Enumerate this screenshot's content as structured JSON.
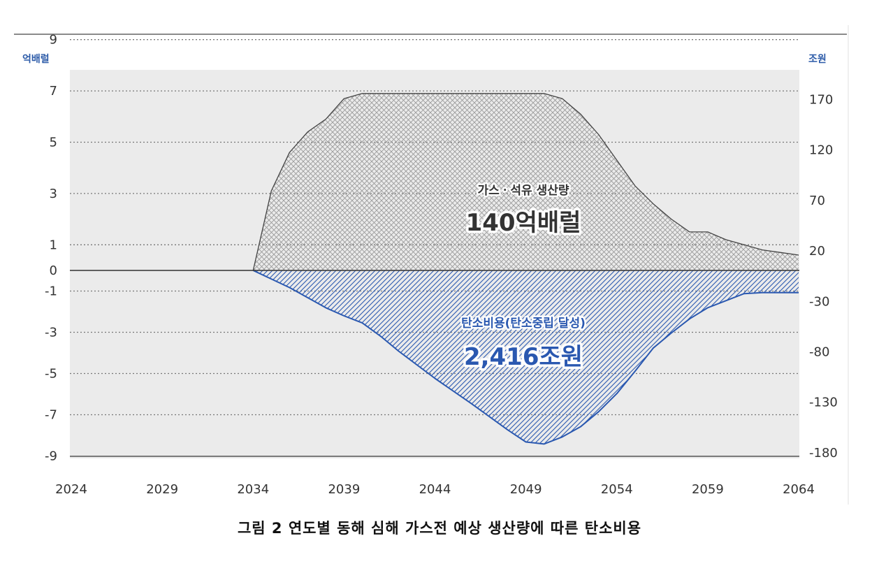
{
  "chart_data": {
    "type": "area",
    "x_ticks": [
      "2024",
      "2029",
      "2034",
      "2039",
      "2044",
      "2049",
      "2054",
      "2059",
      "2064"
    ],
    "xlim": [
      2024,
      2064
    ],
    "left_axis": {
      "unit": "억배럴",
      "ticks": [
        9,
        7,
        5,
        3,
        1,
        0,
        -1,
        -3,
        -5,
        -7,
        -9
      ]
    },
    "right_axis": {
      "unit": "조원",
      "ticks": [
        170,
        120,
        70,
        20,
        -30,
        -80,
        -130,
        -180
      ]
    },
    "grid": true,
    "series": [
      {
        "name": "가스ㆍ석유 생산량",
        "axis": "left",
        "color": "#444444",
        "hatch": "crosshatch",
        "points": [
          [
            2034,
            0
          ],
          [
            2035,
            3.1
          ],
          [
            2036,
            4.6
          ],
          [
            2037,
            5.4
          ],
          [
            2038,
            5.9
          ],
          [
            2039,
            6.7
          ],
          [
            2040,
            6.9
          ],
          [
            2045,
            6.9
          ],
          [
            2050,
            6.9
          ],
          [
            2051,
            6.7
          ],
          [
            2052,
            6.1
          ],
          [
            2053,
            5.3
          ],
          [
            2054,
            4.3
          ],
          [
            2055,
            3.3
          ],
          [
            2056,
            2.6
          ],
          [
            2057,
            2.0
          ],
          [
            2058,
            1.5
          ],
          [
            2059,
            1.5
          ],
          [
            2060,
            1.2
          ],
          [
            2061,
            1.0
          ],
          [
            2062,
            0.8
          ],
          [
            2063,
            0.7
          ],
          [
            2064,
            0.6
          ]
        ]
      },
      {
        "name": "탄소비용(탄소중립 달성)",
        "axis": "right",
        "color": "#2a58b0",
        "hatch": "diagonal",
        "points": [
          [
            2034,
            0
          ],
          [
            2036,
            -17
          ],
          [
            2038,
            -37
          ],
          [
            2039,
            -45
          ],
          [
            2040,
            -52
          ],
          [
            2041,
            -65
          ],
          [
            2042,
            -80
          ],
          [
            2044,
            -107
          ],
          [
            2046,
            -132
          ],
          [
            2048,
            -158
          ],
          [
            2049,
            -170
          ],
          [
            2050,
            -172
          ],
          [
            2051,
            -165
          ],
          [
            2052,
            -155
          ],
          [
            2053,
            -140
          ],
          [
            2054,
            -122
          ],
          [
            2055,
            -100
          ],
          [
            2056,
            -77
          ],
          [
            2057,
            -62
          ],
          [
            2058,
            -48
          ],
          [
            2059,
            -37
          ],
          [
            2060,
            -30
          ],
          [
            2061,
            -23
          ],
          [
            2062,
            -22
          ],
          [
            2064,
            -22
          ]
        ]
      }
    ],
    "annotations": {
      "production_label": "가스ㆍ석유 생산량",
      "production_total": "140억배럴",
      "cost_label": "탄소비용(탄소중립 달성)",
      "cost_total": "2,416조원"
    },
    "caption": "그림 2 연도별 동해 심해 가스전 예상 생산량에 따른 탄소비용"
  }
}
